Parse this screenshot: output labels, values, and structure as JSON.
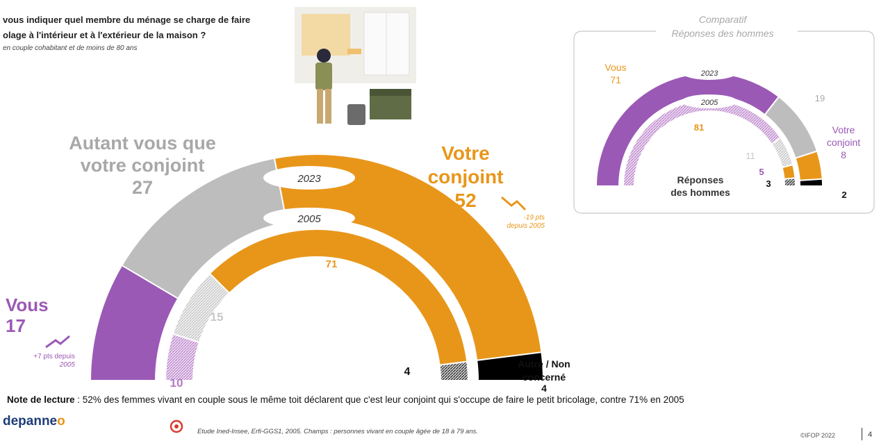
{
  "header": {
    "question_line1": "vous indiquer quel membre du ménage se charge de faire",
    "question_line2": "olage à l'intérieur et à l'extérieur de la maison ?",
    "scope": "en couple cohabitant et de moins de 80 ans"
  },
  "labels": {
    "both_line1": "Autant vous que",
    "both_line2": "votre conjoint",
    "both_value": "27",
    "spouse_line1": "Votre",
    "spouse_line2": "conjoint",
    "spouse_value": "52",
    "spouse_delta_line1": "-19 pts",
    "spouse_delta_line2": "depuis 2005",
    "you_line1": "Vous",
    "you_value": "17",
    "you_delta_line1": "+7 pts depuis",
    "you_delta_line2": "2005",
    "other_line1": "Autre / Non",
    "other_line2": "concerné",
    "year_2023": "2023",
    "year_2005": "2005"
  },
  "chart_data": [
    {
      "type": "pie",
      "variant": "semi-donut",
      "title": "",
      "series": [
        {
          "name": "2023",
          "categories": [
            "Vous",
            "Autant vous que votre conjoint",
            "Votre conjoint",
            "Autre / Non concerné"
          ],
          "values": [
            17,
            27,
            52,
            4
          ]
        },
        {
          "name": "2005",
          "categories": [
            "Vous",
            "Autant vous que votre conjoint",
            "Votre conjoint",
            "Autre / Non concerné"
          ],
          "values": [
            10,
            15,
            71,
            4
          ]
        }
      ],
      "colors": {
        "vous": "#9b59b6",
        "autant": "#bdbdbd",
        "conjoint": "#e8961a",
        "autre": "#000000"
      }
    },
    {
      "type": "pie",
      "variant": "semi-donut",
      "title": "Comparatif",
      "subtitle": "Réponses des hommes",
      "center_label_line1": "Réponses",
      "center_label_line2": "des hommes",
      "series": [
        {
          "name": "2023",
          "categories": [
            "Vous",
            "Autant vous que votre conjoint",
            "Votre conjoint",
            "Autre / Non concerné"
          ],
          "values": [
            71,
            19,
            8,
            2
          ]
        },
        {
          "name": "2005",
          "categories": [
            "Vous",
            "Autant vous que votre conjoint",
            "Votre conjoint",
            "Autre / Non concerné"
          ],
          "values": [
            81,
            11,
            5,
            3
          ]
        }
      ],
      "labels": {
        "you": "Vous",
        "spouse_line1": "Votre",
        "spouse_line2": "conjoint"
      }
    }
  ],
  "footer": {
    "note_bold": "Note de lecture",
    "note_text": " : 52% des femmes vivant en couple sous le même toit déclarent que c'est leur conjoint qui s'occupe de faire le petit bricolage, contre 71% en 2005",
    "logo_text": "depanne",
    "logo_o": "o",
    "source": "Etude Ined-Insee, Erfi-GGS1, 2005. Champs : personnes vivant en couple âgée de 18 à 79 ans.",
    "copyright": "©IFOP 2022",
    "page": "4"
  }
}
